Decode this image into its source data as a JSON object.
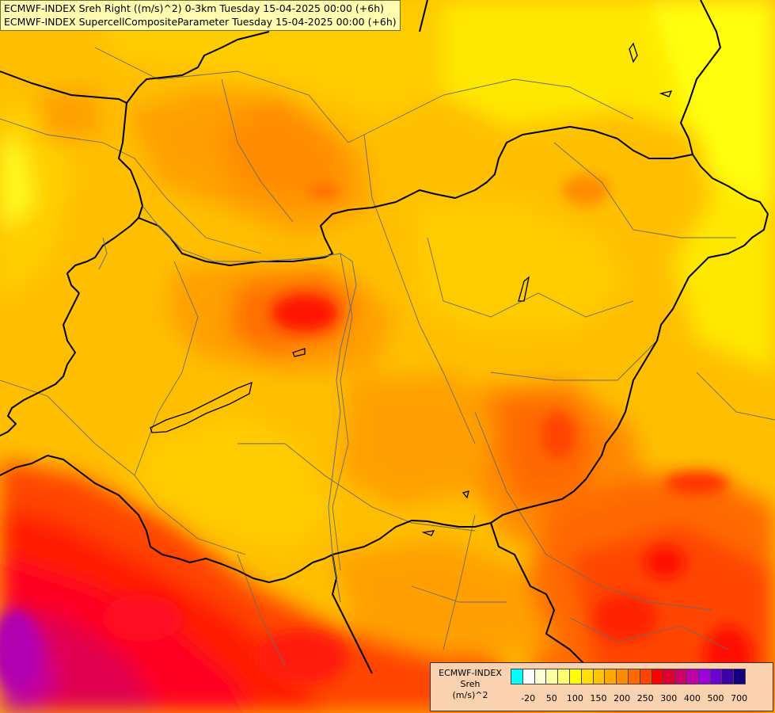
{
  "title": {
    "line1": "ECMWF-INDEX Sreh Right ((m/s)^2) 0-3km Tuesday 15-04-2025 00:00 (+6h)",
    "line2": "ECMWF-INDEX SupercellCompositeParameter Tuesday 15-04-2025 00:00 (+6h)"
  },
  "legend": {
    "line1": "ECMWF-INDEX",
    "line2": "Sreh",
    "line3": "(m/s)^2",
    "colors": [
      "#00ffff",
      "#ffffff",
      "#ffffd8",
      "#ffffa8",
      "#ffff70",
      "#ffff00",
      "#ffe000",
      "#ffc400",
      "#ffa800",
      "#ff8c00",
      "#ff6a00",
      "#ff4400",
      "#ff0000",
      "#e00030",
      "#d0006a",
      "#c000a8",
      "#a000e0",
      "#7000d8",
      "#4000a8",
      "#100080"
    ],
    "ticks": [
      "-20",
      "50",
      "100",
      "150",
      "200",
      "250",
      "300",
      "400",
      "500",
      "700"
    ]
  }
}
